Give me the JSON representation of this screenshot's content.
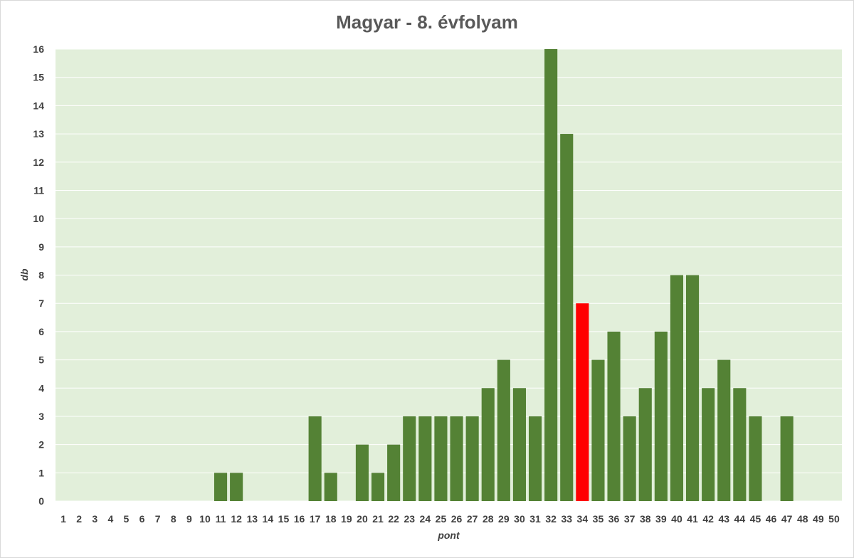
{
  "chart_data": {
    "type": "bar",
    "title": "Magyar - 8. évfolyam",
    "xlabel": "pont",
    "ylabel": "db",
    "ylim": [
      0,
      16
    ],
    "yticks": [
      0,
      1,
      2,
      3,
      4,
      5,
      6,
      7,
      8,
      9,
      10,
      11,
      12,
      13,
      14,
      15,
      16
    ],
    "grid": true,
    "legend": "none",
    "categories": [
      "1",
      "2",
      "3",
      "4",
      "5",
      "6",
      "7",
      "8",
      "9",
      "10",
      "11",
      "12",
      "13",
      "14",
      "15",
      "16",
      "17",
      "18",
      "19",
      "20",
      "21",
      "22",
      "23",
      "24",
      "25",
      "26",
      "27",
      "28",
      "29",
      "30",
      "31",
      "32",
      "33",
      "34",
      "35",
      "36",
      "37",
      "38",
      "39",
      "40",
      "41",
      "42",
      "43",
      "44",
      "45",
      "46",
      "47",
      "48",
      "49",
      "50"
    ],
    "values": [
      0,
      0,
      0,
      0,
      0,
      0,
      0,
      0,
      0,
      0,
      1,
      1,
      0,
      0,
      0,
      0,
      3,
      1,
      0,
      2,
      1,
      2,
      3,
      3,
      3,
      3,
      3,
      4,
      5,
      4,
      3,
      16,
      13,
      7,
      5,
      6,
      3,
      4,
      6,
      8,
      8,
      4,
      5,
      4,
      3,
      0,
      3,
      0,
      0,
      0
    ],
    "highlight_category": "34",
    "colors": {
      "bar": "#548235",
      "highlight": "#ff0000",
      "plot_background": "#e2efda",
      "gridline": "#ffffff",
      "text": "#404040",
      "title": "#595959"
    }
  }
}
